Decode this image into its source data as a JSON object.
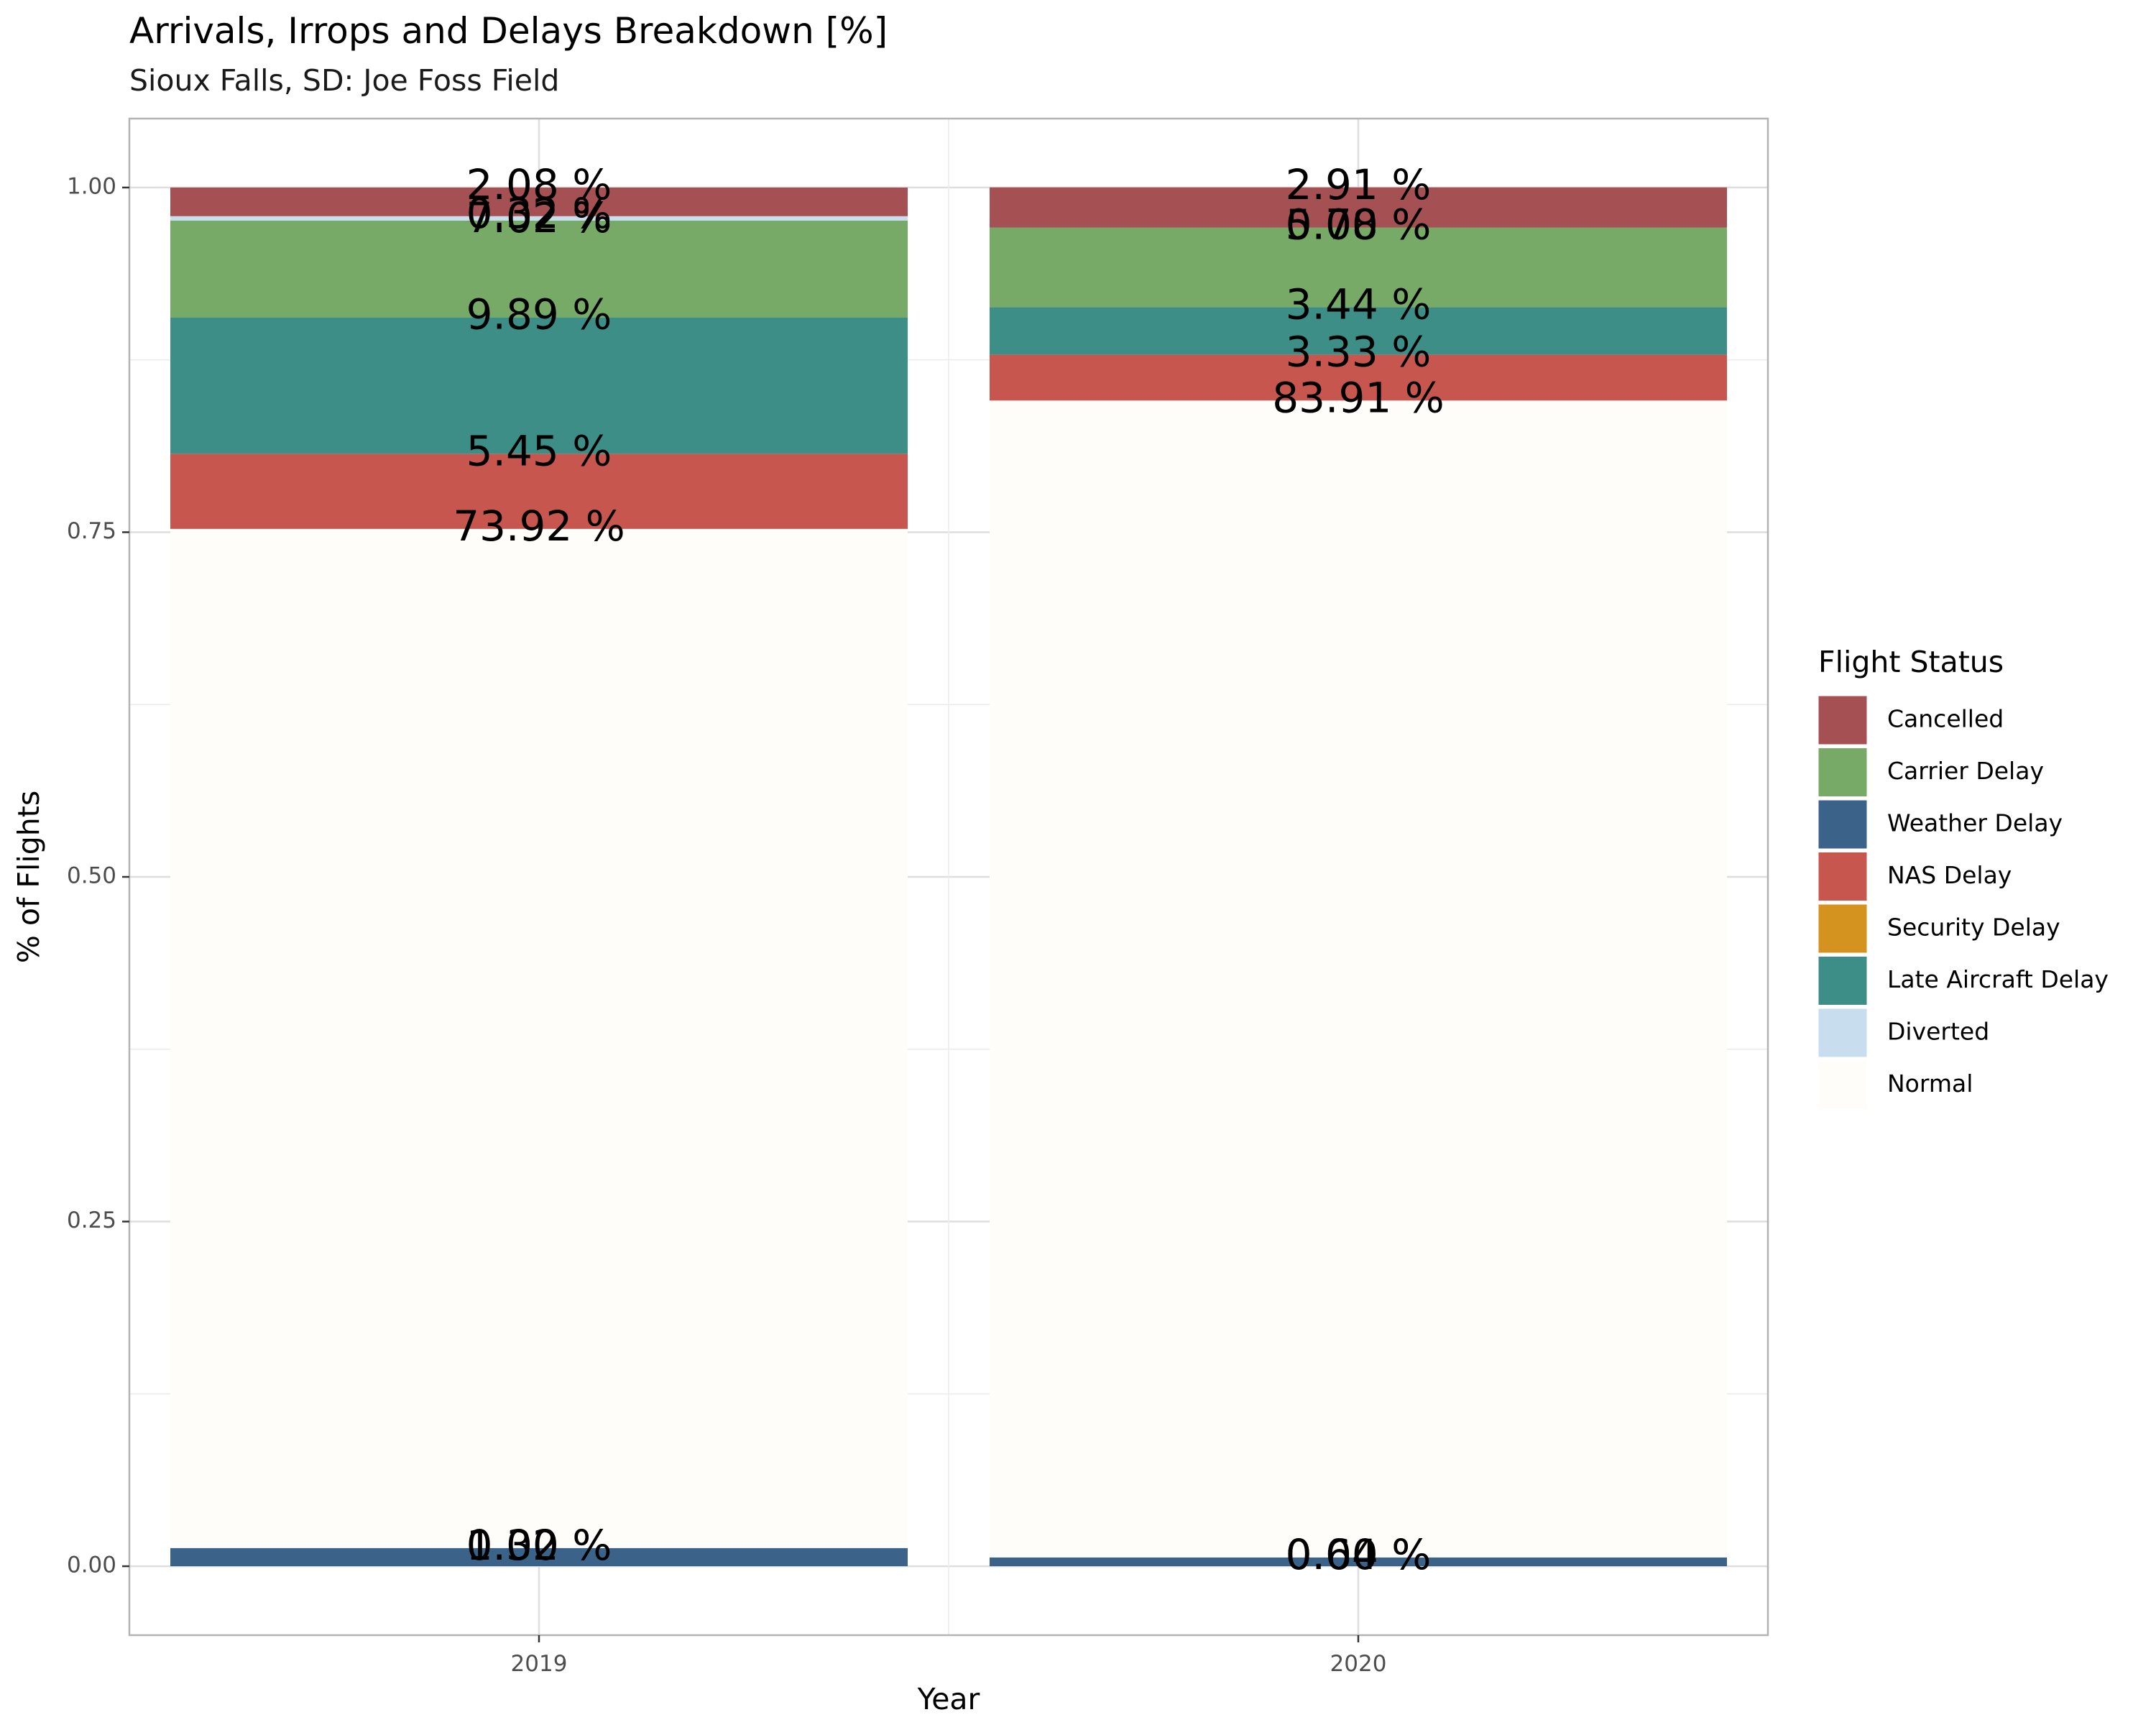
{
  "chart_data": {
    "type": "bar",
    "stacked": true,
    "title": "Arrivals, Irrops and Delays Breakdown [%]",
    "subtitle": "Sioux Falls, SD: Joe Foss Field",
    "xlabel": "Year",
    "ylabel": "% of Flights",
    "ylim": [
      -0.05,
      1.05
    ],
    "yticks": [
      0.0,
      0.25,
      0.5,
      0.75,
      1.0
    ],
    "ytick_labels": [
      "0.00",
      "0.25",
      "0.50",
      "0.75",
      "1.00"
    ],
    "grid": true,
    "legend_position": "right",
    "legend_title": "Flight Status",
    "categories": [
      "2019",
      "2020"
    ],
    "series": [
      {
        "name": "Weather Delay",
        "color": "#3B6389",
        "values": [
          0.0132,
          0.0064
        ],
        "labels": [
          "1.32 %",
          "0.64 %"
        ]
      },
      {
        "name": "Security Delay",
        "color": "#D4921F",
        "values": [
          0.0,
          0.0
        ],
        "labels": [
          "0.00 %",
          "0.00 %"
        ]
      },
      {
        "name": "Normal",
        "color": "#FFFDFA",
        "values": [
          0.7392,
          0.8391
        ],
        "labels": [
          "73.92 %",
          "83.91 %"
        ]
      },
      {
        "name": "NAS Delay",
        "color": "#C7564F",
        "values": [
          0.0545,
          0.0333
        ],
        "labels": [
          "5.45 %",
          "3.33 %"
        ]
      },
      {
        "name": "Late Aircraft Delay",
        "color": "#3C8E87",
        "values": [
          0.0989,
          0.0344
        ],
        "labels": [
          "9.89 %",
          "3.44 %"
        ]
      },
      {
        "name": "Carrier Delay",
        "color": "#77AA67",
        "values": [
          0.0702,
          0.0578
        ],
        "labels": [
          "7.02 %",
          "5.78 %"
        ]
      },
      {
        "name": "Diverted",
        "color": "#C8DDEE",
        "values": [
          0.0032,
          0.0
        ],
        "labels": [
          "0.32 %",
          "0.00 %"
        ]
      },
      {
        "name": "Cancelled",
        "color": "#A55153",
        "values": [
          0.0208,
          0.0291
        ],
        "labels": [
          "2.08 %",
          "2.91 %"
        ]
      }
    ],
    "legend_order": [
      "Cancelled",
      "Carrier Delay",
      "Weather Delay",
      "NAS Delay",
      "Security Delay",
      "Late Aircraft Delay",
      "Diverted",
      "Normal"
    ]
  }
}
